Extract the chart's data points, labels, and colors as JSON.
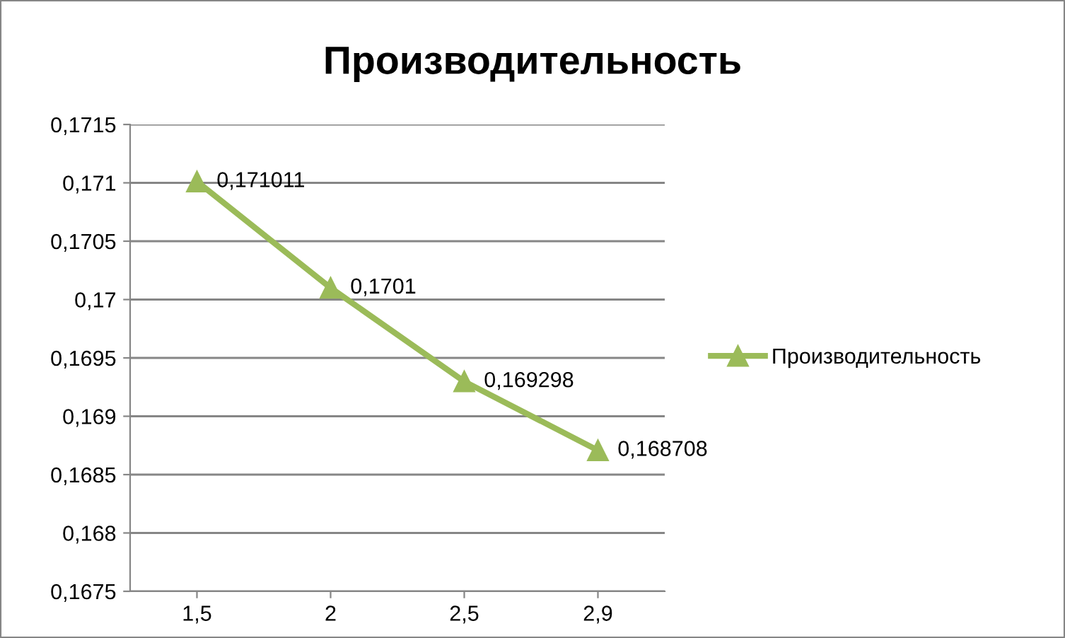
{
  "chart_data": {
    "type": "line",
    "title": "Производительность",
    "categories": [
      "1,5",
      "2",
      "2,5",
      "2,9"
    ],
    "series": [
      {
        "name": "Производительность",
        "color": "#9bbb59",
        "values": [
          0.171011,
          0.1701,
          0.169298,
          0.168708
        ],
        "value_labels": [
          "0,171011",
          "0,1701",
          "0,169298",
          "0,168708"
        ]
      }
    ],
    "ylim": [
      0.1675,
      0.1715
    ],
    "yticks": [
      {
        "value": 0.1675,
        "label": "0,1675"
      },
      {
        "value": 0.168,
        "label": "0,168"
      },
      {
        "value": 0.1685,
        "label": "0,1685"
      },
      {
        "value": 0.169,
        "label": "0,169"
      },
      {
        "value": 0.1695,
        "label": "0,1695"
      },
      {
        "value": 0.17,
        "label": "0,17"
      },
      {
        "value": 0.1705,
        "label": "0,1705"
      },
      {
        "value": 0.171,
        "label": "0,171"
      },
      {
        "value": 0.1715,
        "label": "0,1715"
      }
    ],
    "grid": "y",
    "legend": "right",
    "marker": "triangle",
    "line_style": "solid"
  }
}
